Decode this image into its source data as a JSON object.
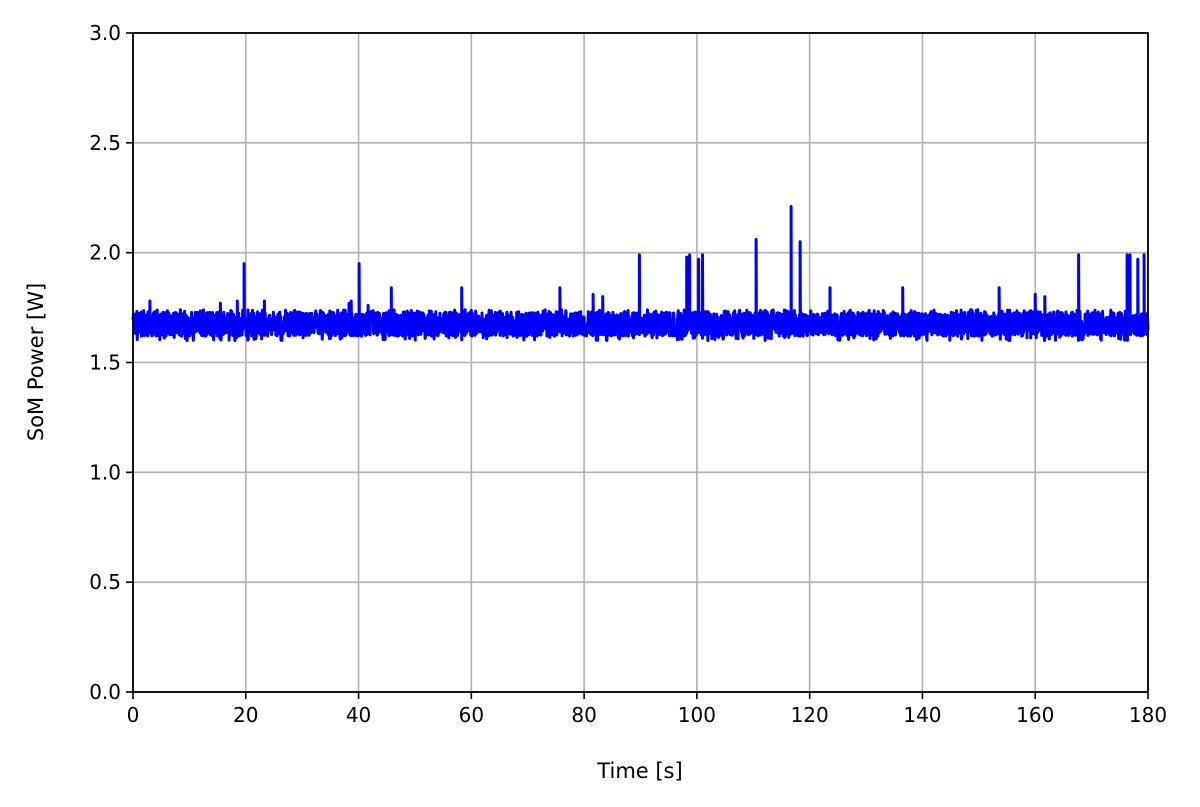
{
  "chart_data": {
    "type": "line",
    "title": "",
    "xlabel": "Time [s]",
    "ylabel": "SoM Power [W]",
    "xlim": [
      0,
      180
    ],
    "ylim": [
      0,
      3.0
    ],
    "xticks": [
      "0",
      "20",
      "40",
      "60",
      "80",
      "100",
      "120",
      "140",
      "160",
      "180"
    ],
    "yticks": [
      "0.0",
      "0.5",
      "1.0",
      "1.5",
      "2.0",
      "2.5",
      "3.0"
    ],
    "grid": true,
    "color": "#0000ff",
    "series": [
      {
        "baseline_range": [
          1.6,
          1.74
        ],
        "spikes": [
          {
            "t": 3.0,
            "w": 1.78
          },
          {
            "t": 15.5,
            "w": 1.77
          },
          {
            "t": 18.5,
            "w": 1.78
          },
          {
            "t": 19.7,
            "w": 1.95
          },
          {
            "t": 23.3,
            "w": 1.78
          },
          {
            "t": 38.3,
            "w": 1.77
          },
          {
            "t": 38.7,
            "w": 1.78
          },
          {
            "t": 40.1,
            "w": 1.95
          },
          {
            "t": 41.7,
            "w": 1.76
          },
          {
            "t": 45.8,
            "w": 1.84
          },
          {
            "t": 58.3,
            "w": 1.84
          },
          {
            "t": 75.7,
            "w": 1.84
          },
          {
            "t": 81.6,
            "w": 1.81
          },
          {
            "t": 83.3,
            "w": 1.8
          },
          {
            "t": 89.8,
            "w": 1.99
          },
          {
            "t": 98.2,
            "w": 1.98
          },
          {
            "t": 98.7,
            "w": 1.99
          },
          {
            "t": 100.3,
            "w": 1.97
          },
          {
            "t": 101.0,
            "w": 1.99
          },
          {
            "t": 110.5,
            "w": 2.06
          },
          {
            "t": 116.7,
            "w": 2.21
          },
          {
            "t": 118.3,
            "w": 2.05
          },
          {
            "t": 123.6,
            "w": 1.84
          },
          {
            "t": 136.5,
            "w": 1.84
          },
          {
            "t": 153.6,
            "w": 1.84
          },
          {
            "t": 160.0,
            "w": 1.81
          },
          {
            "t": 161.7,
            "w": 1.8
          },
          {
            "t": 167.7,
            "w": 1.99
          },
          {
            "t": 176.3,
            "w": 1.99
          },
          {
            "t": 176.8,
            "w": 1.99
          },
          {
            "t": 178.2,
            "w": 1.97
          },
          {
            "t": 179.3,
            "w": 1.99
          }
        ]
      }
    ]
  }
}
